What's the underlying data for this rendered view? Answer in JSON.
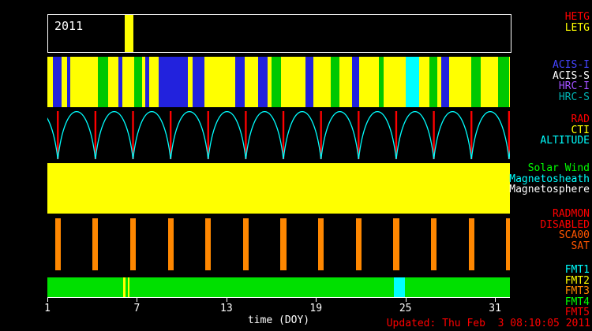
{
  "year_label": "2011",
  "updated": "Updated: Thu Feb  3 08:10:05 2011",
  "chart_data": {
    "type": "timeline",
    "xlabel": "time (DOY)",
    "x_ticks": [
      1,
      7,
      13,
      19,
      25,
      31
    ],
    "xlim": [
      1,
      32
    ],
    "rows": [
      {
        "id": "gratings",
        "background": "#000000",
        "segments": [
          {
            "start": 6.15,
            "end": 6.7,
            "color": "#ffff00"
          }
        ]
      },
      {
        "id": "instruments",
        "background": "#ffff00",
        "segments": [
          {
            "start": 1.35,
            "end": 1.95,
            "color": "#2222dd"
          },
          {
            "start": 2.3,
            "end": 2.55,
            "color": "#2222dd"
          },
          {
            "start": 4.4,
            "end": 5.1,
            "color": "#00c800"
          },
          {
            "start": 5.75,
            "end": 6.05,
            "color": "#2222dd"
          },
          {
            "start": 6.8,
            "end": 7.35,
            "color": "#00c800"
          },
          {
            "start": 7.55,
            "end": 7.8,
            "color": "#2222dd"
          },
          {
            "start": 8.45,
            "end": 10.4,
            "color": "#2222dd"
          },
          {
            "start": 10.75,
            "end": 11.55,
            "color": "#2222dd"
          },
          {
            "start": 13.6,
            "end": 14.25,
            "color": "#2222dd"
          },
          {
            "start": 15.15,
            "end": 15.75,
            "color": "#2222dd"
          },
          {
            "start": 16.0,
            "end": 16.65,
            "color": "#00c800"
          },
          {
            "start": 18.3,
            "end": 18.85,
            "color": "#2222dd"
          },
          {
            "start": 20.0,
            "end": 20.6,
            "color": "#00c800"
          },
          {
            "start": 21.4,
            "end": 21.9,
            "color": "#2222dd"
          },
          {
            "start": 23.2,
            "end": 23.55,
            "color": "#00c800"
          },
          {
            "start": 25.0,
            "end": 25.9,
            "color": "#00ffff"
          },
          {
            "start": 26.6,
            "end": 27.15,
            "color": "#00c800"
          },
          {
            "start": 27.4,
            "end": 27.95,
            "color": "#2222dd"
          },
          {
            "start": 29.4,
            "end": 30.05,
            "color": "#00c800"
          },
          {
            "start": 31.2,
            "end": 31.95,
            "color": "#00c800"
          }
        ]
      },
      {
        "id": "altitude",
        "background": "#000000",
        "orbit": {
          "period_days": 2.52,
          "perigee_days": [
            1.7,
            4.22,
            6.74,
            9.26,
            11.78,
            14.3,
            16.82,
            19.34,
            21.86,
            24.38,
            26.9,
            29.42,
            31.94
          ],
          "arc_color": "#00ffff",
          "perigee_color": "#ff0000"
        }
      },
      {
        "id": "regions",
        "background": "#ffff00"
      },
      {
        "id": "radmon",
        "background": "#000000",
        "bars": {
          "days": [
            1.7,
            4.22,
            6.74,
            9.26,
            11.78,
            14.3,
            16.82,
            19.34,
            21.86,
            24.38,
            26.9,
            29.42,
            31.94
          ],
          "color": "#ff8700",
          "width_days": 0.38
        }
      },
      {
        "id": "telemetry",
        "background": "#00e000",
        "segments": [
          {
            "start": 6.1,
            "end": 6.22,
            "color": "#ffff00"
          },
          {
            "start": 6.38,
            "end": 6.5,
            "color": "#ffff00"
          },
          {
            "start": 24.2,
            "end": 24.95,
            "color": "#00ffff"
          }
        ]
      }
    ]
  },
  "legend_groups": [
    {
      "id": "gratings",
      "labels": [
        {
          "text": "HETG",
          "color": "#ff0000"
        },
        {
          "text": "LETG",
          "color": "#ffff00"
        }
      ]
    },
    {
      "id": "instruments",
      "labels": [
        {
          "text": "ACIS-I",
          "color": "#4444ff"
        },
        {
          "text": "ACIS-S",
          "color": "#ffffff"
        },
        {
          "text": "HRC-I",
          "color": "#a050ff"
        },
        {
          "text": "HRC-S",
          "color": "#00b0b0"
        }
      ]
    },
    {
      "id": "altitude",
      "labels": [
        {
          "text": "RAD",
          "color": "#ff0000"
        },
        {
          "text": "CTI",
          "color": "#ffff00"
        },
        {
          "text": "ALTITUDE",
          "color": "#00ffff"
        }
      ]
    },
    {
      "id": "regions",
      "labels": [
        {
          "text": "Solar Wind",
          "color": "#00ff00"
        },
        {
          "text": "Magnetosheath",
          "color": "#00ffff"
        },
        {
          "text": "Magnetosphere",
          "color": "#ffffff"
        }
      ]
    },
    {
      "id": "radmon",
      "labels": [
        {
          "text": "RADMON",
          "color": "#ff0000"
        },
        {
          "text": "DISABLED",
          "color": "#ff0000"
        },
        {
          "text": "SCA00",
          "color": "#ff5500"
        },
        {
          "text": "SAT",
          "color": "#ff5500"
        }
      ]
    },
    {
      "id": "telemetry",
      "labels": [
        {
          "text": "FMT1",
          "color": "#00ffff"
        },
        {
          "text": "FMT2",
          "color": "#ffff00"
        },
        {
          "text": "FMT3",
          "color": "#ff8800"
        },
        {
          "text": "FMT4",
          "color": "#00ff00"
        },
        {
          "text": "FMT5",
          "color": "#ff0000"
        }
      ]
    }
  ]
}
